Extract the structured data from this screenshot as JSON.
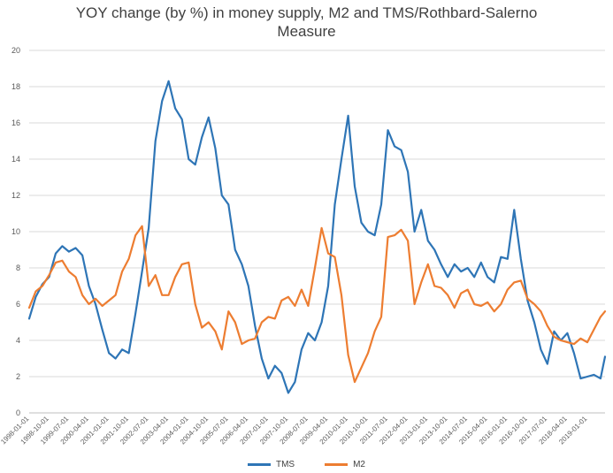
{
  "chart_data": {
    "type": "line",
    "title": "YOY change (by %) in money supply, M2 and TMS/Rothbard-Salerno Measure",
    "title_lines": [
      "YOY change (by %) in money supply, M2 and TMS/Rothbard-Salerno",
      "Measure"
    ],
    "xlabel": "",
    "ylabel": "",
    "ylim": [
      0,
      20
    ],
    "yticks": [
      0,
      2,
      4,
      6,
      8,
      10,
      12,
      14,
      16,
      18,
      20
    ],
    "xlim": [
      "1998-01-01",
      "2019-09-01"
    ],
    "xtick_labels": [
      "1998-01-01",
      "1998-10-01",
      "1999-07-01",
      "2000-04-01",
      "2001-01-01",
      "2001-10-01",
      "2002-07-01",
      "2003-04-01",
      "2004-01-01",
      "2004-10-01",
      "2005-07-01",
      "2006-04-01",
      "2007-01-01",
      "2007-10-01",
      "2008-07-01",
      "2009-04-01",
      "2010-01-01",
      "2010-10-01",
      "2011-07-01",
      "2012-04-01",
      "2013-01-01",
      "2013-10-01",
      "2014-07-01",
      "2015-04-01",
      "2016-01-01",
      "2016-10-01",
      "2017-07-01",
      "2018-04-01",
      "2019-01-01"
    ],
    "grid": "horizontal",
    "legend_position": "bottom",
    "series": [
      {
        "name": "TMS",
        "color": "#2E75B6",
        "points": [
          [
            "1998-01-01",
            5.2
          ],
          [
            "1998-04-01",
            6.4
          ],
          [
            "1998-07-01",
            7.1
          ],
          [
            "1998-10-01",
            7.5
          ],
          [
            "1999-01-01",
            8.8
          ],
          [
            "1999-04-01",
            9.2
          ],
          [
            "1999-07-01",
            8.9
          ],
          [
            "1999-10-01",
            9.1
          ],
          [
            "2000-01-01",
            8.7
          ],
          [
            "2000-04-01",
            7.0
          ],
          [
            "2000-07-01",
            6.0
          ],
          [
            "2000-10-01",
            4.6
          ],
          [
            "2001-01-01",
            3.3
          ],
          [
            "2001-04-01",
            3.0
          ],
          [
            "2001-07-01",
            3.5
          ],
          [
            "2001-10-01",
            3.3
          ],
          [
            "2002-01-01",
            5.5
          ],
          [
            "2002-04-01",
            7.8
          ],
          [
            "2002-07-01",
            10.2
          ],
          [
            "2002-10-01",
            15.0
          ],
          [
            "2003-01-01",
            17.2
          ],
          [
            "2003-04-01",
            18.3
          ],
          [
            "2003-07-01",
            16.8
          ],
          [
            "2003-10-01",
            16.2
          ],
          [
            "2004-01-01",
            14.0
          ],
          [
            "2004-04-01",
            13.7
          ],
          [
            "2004-07-01",
            15.2
          ],
          [
            "2004-10-01",
            16.3
          ],
          [
            "2005-01-01",
            14.6
          ],
          [
            "2005-04-01",
            12.0
          ],
          [
            "2005-07-01",
            11.5
          ],
          [
            "2005-10-01",
            9.0
          ],
          [
            "2006-01-01",
            8.2
          ],
          [
            "2006-04-01",
            7.0
          ],
          [
            "2006-07-01",
            4.8
          ],
          [
            "2006-10-01",
            3.0
          ],
          [
            "2007-01-01",
            1.9
          ],
          [
            "2007-04-01",
            2.6
          ],
          [
            "2007-07-01",
            2.2
          ],
          [
            "2007-10-01",
            1.1
          ],
          [
            "2008-01-01",
            1.7
          ],
          [
            "2008-04-01",
            3.5
          ],
          [
            "2008-07-01",
            4.4
          ],
          [
            "2008-10-01",
            4.0
          ],
          [
            "2009-01-01",
            5.0
          ],
          [
            "2009-04-01",
            7.0
          ],
          [
            "2009-07-01",
            11.5
          ],
          [
            "2009-10-01",
            14.0
          ],
          [
            "2010-01-01",
            16.4
          ],
          [
            "2010-04-01",
            12.5
          ],
          [
            "2010-07-01",
            10.5
          ],
          [
            "2010-10-01",
            10.0
          ],
          [
            "2011-01-01",
            9.8
          ],
          [
            "2011-04-01",
            11.5
          ],
          [
            "2011-07-01",
            15.6
          ],
          [
            "2011-10-01",
            14.7
          ],
          [
            "2012-01-01",
            14.5
          ],
          [
            "2012-04-01",
            13.3
          ],
          [
            "2012-07-01",
            10.0
          ],
          [
            "2012-10-01",
            11.2
          ],
          [
            "2013-01-01",
            9.5
          ],
          [
            "2013-04-01",
            9.0
          ],
          [
            "2013-07-01",
            8.2
          ],
          [
            "2013-10-01",
            7.5
          ],
          [
            "2014-01-01",
            8.2
          ],
          [
            "2014-04-01",
            7.8
          ],
          [
            "2014-07-01",
            8.0
          ],
          [
            "2014-10-01",
            7.5
          ],
          [
            "2015-01-01",
            8.3
          ],
          [
            "2015-04-01",
            7.5
          ],
          [
            "2015-07-01",
            7.2
          ],
          [
            "2015-10-01",
            8.6
          ],
          [
            "2016-01-01",
            8.5
          ],
          [
            "2016-04-01",
            11.2
          ],
          [
            "2016-07-01",
            8.5
          ],
          [
            "2016-10-01",
            6.2
          ],
          [
            "2017-01-01",
            5.0
          ],
          [
            "2017-04-01",
            3.5
          ],
          [
            "2017-07-01",
            2.7
          ],
          [
            "2017-10-01",
            4.5
          ],
          [
            "2018-01-01",
            4.0
          ],
          [
            "2018-04-01",
            4.4
          ],
          [
            "2018-07-01",
            3.3
          ],
          [
            "2018-10-01",
            1.9
          ],
          [
            "2019-01-01",
            2.0
          ],
          [
            "2019-04-01",
            2.1
          ],
          [
            "2019-07-01",
            1.9
          ],
          [
            "2019-09-01",
            3.1
          ]
        ]
      },
      {
        "name": "M2",
        "color": "#ED7D31",
        "points": [
          [
            "1998-01-01",
            5.8
          ],
          [
            "1998-04-01",
            6.7
          ],
          [
            "1998-07-01",
            7.0
          ],
          [
            "1998-10-01",
            7.6
          ],
          [
            "1999-01-01",
            8.3
          ],
          [
            "1999-04-01",
            8.4
          ],
          [
            "1999-07-01",
            7.8
          ],
          [
            "1999-10-01",
            7.5
          ],
          [
            "2000-01-01",
            6.5
          ],
          [
            "2000-04-01",
            6.0
          ],
          [
            "2000-07-01",
            6.3
          ],
          [
            "2000-10-01",
            5.9
          ],
          [
            "2001-01-01",
            6.2
          ],
          [
            "2001-04-01",
            6.5
          ],
          [
            "2001-07-01",
            7.8
          ],
          [
            "2001-10-01",
            8.5
          ],
          [
            "2002-01-01",
            9.8
          ],
          [
            "2002-04-01",
            10.3
          ],
          [
            "2002-07-01",
            7.0
          ],
          [
            "2002-10-01",
            7.6
          ],
          [
            "2003-01-01",
            6.5
          ],
          [
            "2003-04-01",
            6.5
          ],
          [
            "2003-07-01",
            7.5
          ],
          [
            "2003-10-01",
            8.2
          ],
          [
            "2004-01-01",
            8.3
          ],
          [
            "2004-04-01",
            6.0
          ],
          [
            "2004-07-01",
            4.7
          ],
          [
            "2004-10-01",
            5.0
          ],
          [
            "2005-01-01",
            4.5
          ],
          [
            "2005-04-01",
            3.5
          ],
          [
            "2005-07-01",
            5.6
          ],
          [
            "2005-10-01",
            5.0
          ],
          [
            "2006-01-01",
            3.8
          ],
          [
            "2006-04-01",
            4.0
          ],
          [
            "2006-07-01",
            4.1
          ],
          [
            "2006-10-01",
            5.0
          ],
          [
            "2007-01-01",
            5.3
          ],
          [
            "2007-04-01",
            5.2
          ],
          [
            "2007-07-01",
            6.2
          ],
          [
            "2007-10-01",
            6.4
          ],
          [
            "2008-01-01",
            5.9
          ],
          [
            "2008-04-01",
            6.8
          ],
          [
            "2008-07-01",
            5.9
          ],
          [
            "2008-10-01",
            8.0
          ],
          [
            "2009-01-01",
            10.2
          ],
          [
            "2009-04-01",
            8.8
          ],
          [
            "2009-07-01",
            8.6
          ],
          [
            "2009-10-01",
            6.5
          ],
          [
            "2010-01-01",
            3.2
          ],
          [
            "2010-04-01",
            1.7
          ],
          [
            "2010-07-01",
            2.5
          ],
          [
            "2010-10-01",
            3.3
          ],
          [
            "2011-01-01",
            4.5
          ],
          [
            "2011-04-01",
            5.3
          ],
          [
            "2011-07-01",
            9.7
          ],
          [
            "2011-10-01",
            9.8
          ],
          [
            "2012-01-01",
            10.1
          ],
          [
            "2012-04-01",
            9.5
          ],
          [
            "2012-07-01",
            6.0
          ],
          [
            "2012-10-01",
            7.2
          ],
          [
            "2013-01-01",
            8.2
          ],
          [
            "2013-04-01",
            7.0
          ],
          [
            "2013-07-01",
            6.9
          ],
          [
            "2013-10-01",
            6.5
          ],
          [
            "2014-01-01",
            5.8
          ],
          [
            "2014-04-01",
            6.6
          ],
          [
            "2014-07-01",
            6.8
          ],
          [
            "2014-10-01",
            6.0
          ],
          [
            "2015-01-01",
            5.9
          ],
          [
            "2015-04-01",
            6.1
          ],
          [
            "2015-07-01",
            5.6
          ],
          [
            "2015-10-01",
            6.0
          ],
          [
            "2016-01-01",
            6.8
          ],
          [
            "2016-04-01",
            7.2
          ],
          [
            "2016-07-01",
            7.3
          ],
          [
            "2016-10-01",
            6.3
          ],
          [
            "2017-01-01",
            6.0
          ],
          [
            "2017-04-01",
            5.6
          ],
          [
            "2017-07-01",
            4.8
          ],
          [
            "2017-10-01",
            4.2
          ],
          [
            "2018-01-01",
            4.0
          ],
          [
            "2018-04-01",
            3.9
          ],
          [
            "2018-07-01",
            3.8
          ],
          [
            "2018-10-01",
            4.1
          ],
          [
            "2019-01-01",
            3.9
          ],
          [
            "2019-04-01",
            4.6
          ],
          [
            "2019-07-01",
            5.3
          ],
          [
            "2019-09-01",
            5.6
          ]
        ]
      }
    ]
  }
}
